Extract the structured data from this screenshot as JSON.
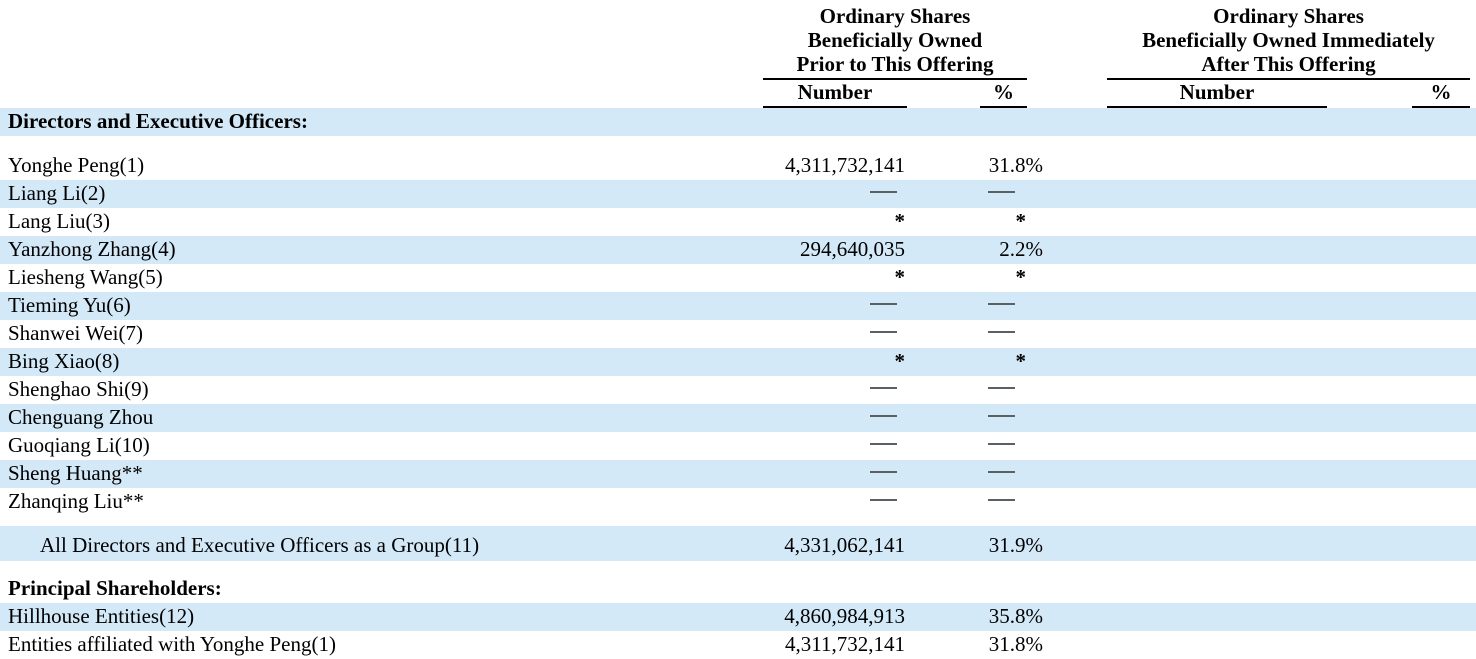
{
  "header": {
    "prior": {
      "line1": "Ordinary Shares",
      "line2": "Beneficially Owned",
      "line3": "Prior to This Offering",
      "col_number": "Number",
      "col_percent": "%"
    },
    "after": {
      "line1": "Ordinary Shares",
      "line2": "Beneficially Owned Immediately",
      "line3": "After This Offering",
      "col_number": "Number",
      "col_percent": "%"
    }
  },
  "colors": {
    "row_highlight": "#d3e9f8",
    "dash": "#5b6064",
    "text": "#000000"
  },
  "rows": [
    {
      "kind": "section",
      "label": "Directors and Executive Officers:",
      "bold": true,
      "shaded": true,
      "prior_number": "",
      "prior_pct": "",
      "after_number": "",
      "after_pct": ""
    },
    {
      "kind": "spacer",
      "size": "lg"
    },
    {
      "kind": "person",
      "label": "Yonghe Peng(1)",
      "shaded": false,
      "prior_number": "4,311,732,141",
      "prior_pct": "31.8%",
      "after_number": "",
      "after_pct": ""
    },
    {
      "kind": "person",
      "label": "Liang Li(2)",
      "shaded": true,
      "prior_number": "—",
      "prior_pct": "—",
      "after_number": "",
      "after_pct": ""
    },
    {
      "kind": "person",
      "label": "Lang Liu(3)",
      "shaded": false,
      "prior_number": "*",
      "prior_pct": "*",
      "after_number": "",
      "after_pct": ""
    },
    {
      "kind": "person",
      "label": "Yanzhong Zhang(4)",
      "shaded": true,
      "prior_number": "294,640,035",
      "prior_pct": "2.2%",
      "after_number": "",
      "after_pct": ""
    },
    {
      "kind": "person",
      "label": "Liesheng Wang(5)",
      "shaded": false,
      "prior_number": "*",
      "prior_pct": "*",
      "after_number": "",
      "after_pct": ""
    },
    {
      "kind": "person",
      "label": "Tieming Yu(6)",
      "shaded": true,
      "prior_number": "—",
      "prior_pct": "—",
      "after_number": "",
      "after_pct": ""
    },
    {
      "kind": "person",
      "label": "Shanwei Wei(7)",
      "shaded": false,
      "prior_number": "—",
      "prior_pct": "—",
      "after_number": "",
      "after_pct": ""
    },
    {
      "kind": "person",
      "label": "Bing Xiao(8)",
      "shaded": true,
      "prior_number": "*",
      "prior_pct": "*",
      "after_number": "",
      "after_pct": ""
    },
    {
      "kind": "person",
      "label": "Shenghao Shi(9)",
      "shaded": false,
      "prior_number": "—",
      "prior_pct": "—",
      "after_number": "",
      "after_pct": ""
    },
    {
      "kind": "person",
      "label": "Chenguang Zhou",
      "shaded": true,
      "prior_number": "—",
      "prior_pct": "—",
      "after_number": "",
      "after_pct": ""
    },
    {
      "kind": "person",
      "label": "Guoqiang Li(10)",
      "shaded": false,
      "prior_number": "—",
      "prior_pct": "—",
      "after_number": "",
      "after_pct": ""
    },
    {
      "kind": "person",
      "label": "Sheng Huang**",
      "shaded": true,
      "prior_number": "—",
      "prior_pct": "—",
      "after_number": "",
      "after_pct": ""
    },
    {
      "kind": "person",
      "label": "Zhanqing Liu**",
      "shaded": false,
      "prior_number": "—",
      "prior_pct": "—",
      "after_number": "",
      "after_pct": ""
    },
    {
      "kind": "spacer",
      "size": "sm"
    },
    {
      "kind": "total",
      "label": "All Directors and Executive Officers as a Group(11)",
      "indent": true,
      "shaded": true,
      "prior_number": "4,331,062,141",
      "prior_pct": "31.9%",
      "after_number": "",
      "after_pct": ""
    },
    {
      "kind": "spacer",
      "size": "md"
    },
    {
      "kind": "section",
      "label": "Principal Shareholders:",
      "bold": true,
      "shaded": false,
      "prior_number": "",
      "prior_pct": "",
      "after_number": "",
      "after_pct": ""
    },
    {
      "kind": "person",
      "label": "Hillhouse Entities(12)",
      "shaded": true,
      "prior_number": "4,860,984,913",
      "prior_pct": "35.8%",
      "after_number": "",
      "after_pct": ""
    },
    {
      "kind": "person",
      "label": "Entities affiliated with Yonghe Peng(1)",
      "shaded": false,
      "prior_number": "4,311,732,141",
      "prior_pct": "31.8%",
      "after_number": "",
      "after_pct": ""
    }
  ]
}
